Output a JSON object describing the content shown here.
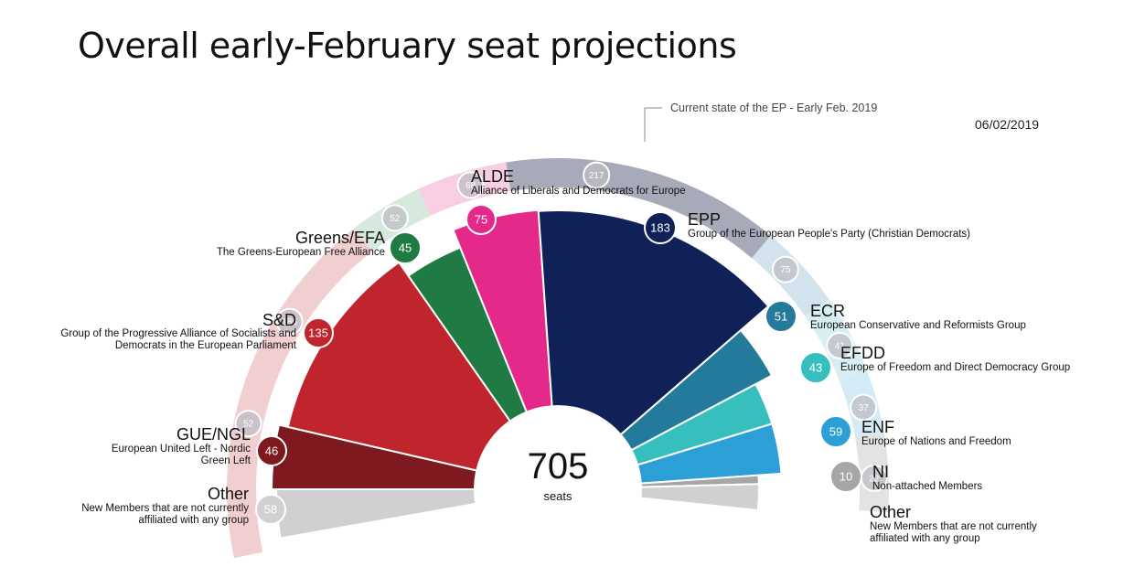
{
  "title": "Overall early-February seat projections",
  "date": "06/02/2019",
  "chart_data": {
    "type": "parliament",
    "total_label": "705",
    "total_unit": "seats",
    "projection": [
      {
        "abbr": "Other",
        "name": "New Members that are not currently affiliated with any group",
        "seats": 58,
        "color": "#d0d0d0"
      },
      {
        "abbr": "GUE/NGL",
        "name": "European United Left - Nordic Green Left",
        "seats": 46,
        "color": "#7e1a1f"
      },
      {
        "abbr": "S&D",
        "name": "Group of the Progressive Alliance of Socialists and Democrats in the European Parliament",
        "seats": 135,
        "color": "#c0252e"
      },
      {
        "abbr": "Greens/EFA",
        "name": "The Greens-European Free Alliance",
        "seats": 45,
        "color": "#1f7a43"
      },
      {
        "abbr": "ALDE",
        "name": "Alliance of Liberals and Democrats for Europe",
        "seats": 75,
        "color": "#e5298b"
      },
      {
        "abbr": "EPP",
        "name": "Group of the European People's Party (Christian Democrats)",
        "seats": 183,
        "color": "#0f2157"
      },
      {
        "abbr": "ECR",
        "name": "European Conservative and Reformists Group",
        "seats": 51,
        "color": "#247a9b"
      },
      {
        "abbr": "EFDD",
        "name": "Europe of Freedom and Direct Democracy Group",
        "seats": 43,
        "color": "#37bfbf"
      },
      {
        "abbr": "ENF",
        "name": "Europe of Nations and Freedom",
        "seats": 59,
        "color": "#2b9fd6"
      },
      {
        "abbr": "NI",
        "name": "Non-attached Members",
        "seats": 10,
        "color": "#a6a6a6"
      },
      {
        "abbr": "Other",
        "name": "New Members that are not currently affiliated with any group",
        "seats": null,
        "color": "#d0d0d0"
      }
    ],
    "current": {
      "label": "Current state of the EP - Early Feb. 2019",
      "groups": [
        {
          "abbr": "GUE/NGL",
          "seats": 52,
          "color": "#f1cfd1"
        },
        {
          "abbr": "S&D",
          "seats": 186,
          "color": "#f1cfd1"
        },
        {
          "abbr": "Greens/EFA",
          "seats": 52,
          "color": "#d5e9dd"
        },
        {
          "abbr": "ALDE",
          "seats": 68,
          "color": "#f8cfe2"
        },
        {
          "abbr": "EPP",
          "seats": 217,
          "color": "#a7aab9"
        },
        {
          "abbr": "ECR",
          "seats": 75,
          "color": "#d2e3ed"
        },
        {
          "abbr": "EFDD",
          "seats": 41,
          "color": "#d7eef3"
        },
        {
          "abbr": "ENF",
          "seats": 37,
          "color": "#d4eaf6"
        },
        {
          "abbr": "NI",
          "seats": 22,
          "color": "#e3e3e3"
        }
      ]
    }
  }
}
